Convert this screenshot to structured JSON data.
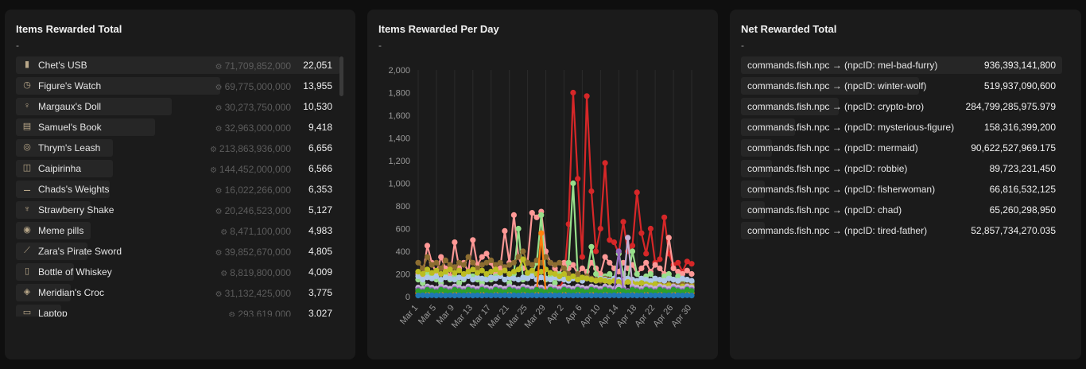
{
  "panels": {
    "items_total": {
      "title": "Items Rewarded Total",
      "subtitle": "-",
      "items": [
        {
          "name": "Chet's USB",
          "coins": "71,709,852,000",
          "count": "22,051",
          "icon": "usb-icon",
          "bar": 1.0
        },
        {
          "name": "Figure's Watch",
          "coins": "69,775,000,000",
          "count": "13,955",
          "icon": "watch-icon",
          "bar": 0.63
        },
        {
          "name": "Margaux's Doll",
          "coins": "30,273,750,000",
          "count": "10,530",
          "icon": "doll-icon",
          "bar": 0.48
        },
        {
          "name": "Samuel's Book",
          "coins": "32,963,000,000",
          "count": "9,418",
          "icon": "book-icon",
          "bar": 0.43
        },
        {
          "name": "Thrym's Leash",
          "coins": "213,863,936,000",
          "count": "6,656",
          "icon": "leash-icon",
          "bar": 0.3
        },
        {
          "name": "Caipirinha",
          "coins": "144,452,000,000",
          "count": "6,566",
          "icon": "drink-icon",
          "bar": 0.3
        },
        {
          "name": "Chads's Weights",
          "coins": "16,022,266,000",
          "count": "6,353",
          "icon": "weights-icon",
          "bar": 0.29
        },
        {
          "name": "Strawberry Shake",
          "coins": "20,246,523,000",
          "count": "5,127",
          "icon": "shake-icon",
          "bar": 0.23
        },
        {
          "name": "Meme pills",
          "coins": "8,471,100,000",
          "count": "4,983",
          "icon": "pills-icon",
          "bar": 0.23
        },
        {
          "name": "Zara's Pirate Sword",
          "coins": "39,852,670,000",
          "count": "4,805",
          "icon": "sword-icon",
          "bar": 0.22
        },
        {
          "name": "Bottle of Whiskey",
          "coins": "8,819,800,000",
          "count": "4,009",
          "icon": "bottle-icon",
          "bar": 0.18
        },
        {
          "name": "Meridian's Croc",
          "coins": "31,132,425,000",
          "count": "3,775",
          "icon": "croc-icon",
          "bar": 0.17
        },
        {
          "name": "Laptop",
          "coins": "293,619,000",
          "count": "3,027",
          "icon": "laptop-icon",
          "bar": 0.14
        }
      ]
    },
    "items_per_day": {
      "title": "Items Rewarded Per Day",
      "subtitle": "-"
    },
    "net_total": {
      "title": "Net Rewarded Total",
      "subtitle": "-",
      "items": [
        {
          "name": "commands.fish.npc → (npcID: mel-bad-furry)",
          "value": "936,393,141,800",
          "bar": 1.0
        },
        {
          "name": "commands.fish.npc → (npcID: winter-wolf)",
          "value": "519,937,090,600",
          "bar": 0.555
        },
        {
          "name": "commands.fish.npc → (npcID: crypto-bro)",
          "value": "284,799,285,975.979",
          "bar": 0.304
        },
        {
          "name": "commands.fish.npc → (npcID: mysterious-figure)",
          "value": "158,316,399,200",
          "bar": 0.169
        },
        {
          "name": "commands.fish.npc → (npcID: mermaid)",
          "value": "90,622,527,969.175",
          "bar": 0.097
        },
        {
          "name": "commands.fish.npc → (npcID: robbie)",
          "value": "89,723,231,450",
          "bar": 0.096
        },
        {
          "name": "commands.fish.npc → (npcID: fisherwoman)",
          "value": "66,816,532,125",
          "bar": 0.071
        },
        {
          "name": "commands.fish.npc → (npcID: chad)",
          "value": "65,260,298,950",
          "bar": 0.07
        },
        {
          "name": "commands.fish.npc → (npcID: tired-father)",
          "value": "52,857,734,270.035",
          "bar": 0.056
        }
      ]
    }
  },
  "chart_data": {
    "type": "line",
    "title": "Items Rewarded Per Day",
    "xlabel": "",
    "ylabel": "",
    "ylim": [
      0,
      2000
    ],
    "yticks": [
      "0",
      "200",
      "400",
      "600",
      "800",
      "1,000",
      "1,200",
      "1,400",
      "1,600",
      "1,800",
      "2,000"
    ],
    "x_tick_labels": [
      "Mar 1",
      "Mar 5",
      "Mar 9",
      "Mar 13",
      "Mar 17",
      "Mar 21",
      "Mar 25",
      "Mar 29",
      "Apr 2",
      "Apr 6",
      "Apr 10",
      "Apr 14",
      "Apr 18",
      "Apr 22",
      "Apr 26",
      "Apr 30"
    ],
    "grid": "vertical",
    "legend": "none",
    "x_count": 61,
    "series": [
      {
        "color": "#d62728",
        "values": [
          40,
          30,
          45,
          50,
          35,
          30,
          40,
          45,
          30,
          35,
          40,
          30,
          45,
          50,
          35,
          30,
          40,
          45,
          30,
          35,
          40,
          30,
          45,
          50,
          35,
          30,
          40,
          45,
          30,
          35,
          50,
          80,
          150,
          640,
          1800,
          1040,
          350,
          1770,
          930,
          400,
          600,
          1180,
          500,
          480,
          380,
          660,
          400,
          450,
          920,
          560,
          380,
          600,
          300,
          330,
          700,
          380,
          280,
          300,
          220,
          310,
          290
        ]
      },
      {
        "color": "#ff9896",
        "values": [
          200,
          180,
          450,
          300,
          200,
          350,
          250,
          180,
          480,
          250,
          300,
          220,
          500,
          280,
          350,
          380,
          300,
          200,
          250,
          580,
          300,
          720,
          350,
          250,
          300,
          740,
          700,
          750,
          400,
          300,
          250,
          200,
          300,
          250,
          280,
          200,
          250,
          220,
          300,
          250,
          200,
          350,
          300,
          250,
          220,
          300,
          250,
          280,
          200,
          250,
          300,
          220,
          280,
          250,
          200,
          520,
          250,
          220,
          200,
          230,
          200
        ]
      },
      {
        "color": "#98df8a",
        "values": [
          150,
          120,
          200,
          180,
          150,
          120,
          200,
          150,
          180,
          120,
          150,
          200,
          180,
          150,
          120,
          200,
          150,
          180,
          200,
          150,
          120,
          200,
          600,
          150,
          180,
          200,
          300,
          720,
          150,
          180,
          120,
          200,
          150,
          300,
          1000,
          200,
          150,
          180,
          440,
          200,
          150,
          180,
          200,
          150,
          380,
          200,
          150,
          400,
          200,
          150,
          180,
          200,
          150,
          120,
          180,
          200,
          150,
          180,
          120,
          150,
          130
        ]
      },
      {
        "color": "#8c6d31",
        "values": [
          300,
          250,
          350,
          280,
          300,
          250,
          320,
          280,
          260,
          300,
          280,
          350,
          300,
          250,
          280,
          300,
          320,
          280,
          300,
          260,
          280,
          300,
          350,
          400,
          300,
          280,
          320,
          300,
          350,
          300,
          280,
          300,
          250,
          200,
          180,
          200,
          150,
          180,
          160,
          150,
          140,
          160,
          150,
          140,
          130,
          150,
          140,
          130,
          120,
          140,
          130,
          120,
          110,
          130,
          120,
          110,
          100,
          120,
          110,
          100,
          110
        ]
      },
      {
        "color": "#aec7e8",
        "values": [
          180,
          150,
          170,
          160,
          180,
          150,
          170,
          160,
          150,
          170,
          160,
          180,
          150,
          170,
          160,
          150,
          170,
          160,
          180,
          150,
          170,
          160,
          150,
          170,
          160,
          180,
          150,
          170,
          160,
          150,
          170,
          160,
          150,
          140,
          160,
          150,
          140,
          160,
          150,
          140,
          160,
          150,
          140,
          160,
          150,
          140,
          160,
          150,
          140,
          160,
          150,
          140,
          160,
          150,
          140,
          160,
          150,
          140,
          160,
          150,
          140
        ]
      },
      {
        "color": "#bcbd22",
        "values": [
          220,
          200,
          240,
          210,
          230,
          200,
          220,
          240,
          210,
          230,
          200,
          220,
          240,
          210,
          230,
          200,
          220,
          240,
          210,
          230,
          200,
          220,
          240,
          330,
          210,
          230,
          200,
          220,
          240,
          210,
          200,
          180,
          200,
          160,
          180,
          150,
          170,
          160,
          150,
          140,
          150,
          140,
          130,
          140,
          130,
          120,
          130,
          120,
          110,
          120,
          110,
          100,
          110,
          100,
          90,
          100,
          90,
          80,
          90,
          80,
          90
        ]
      },
      {
        "color": "#c5b0d5",
        "values": [
          80,
          70,
          90,
          80,
          70,
          90,
          80,
          70,
          90,
          80,
          70,
          90,
          80,
          70,
          90,
          80,
          70,
          90,
          80,
          70,
          90,
          80,
          70,
          90,
          80,
          70,
          90,
          80,
          70,
          90,
          80,
          70,
          90,
          80,
          70,
          90,
          80,
          70,
          90,
          80,
          70,
          90,
          80,
          70,
          90,
          80,
          520,
          90,
          80,
          70,
          90,
          80,
          70,
          90,
          80,
          70,
          90,
          80,
          70,
          90,
          80
        ]
      },
      {
        "color": "#9467bd",
        "values": [
          60,
          50,
          70,
          60,
          50,
          70,
          60,
          50,
          70,
          60,
          50,
          70,
          60,
          50,
          70,
          60,
          50,
          70,
          60,
          50,
          70,
          60,
          50,
          70,
          60,
          50,
          70,
          60,
          50,
          70,
          60,
          50,
          70,
          60,
          50,
          70,
          60,
          50,
          70,
          60,
          50,
          70,
          60,
          50,
          400,
          60,
          50,
          70,
          60,
          50,
          70,
          60,
          50,
          70,
          60,
          50,
          70,
          60,
          50,
          70,
          60
        ]
      },
      {
        "color": "#ff7f0e",
        "values": [
          30,
          25,
          35,
          30,
          25,
          35,
          30,
          25,
          35,
          30,
          25,
          35,
          30,
          25,
          35,
          30,
          25,
          35,
          30,
          25,
          35,
          30,
          25,
          35,
          30,
          25,
          35,
          560,
          25,
          35,
          30,
          25,
          35,
          30,
          25,
          35,
          30,
          25,
          35,
          30,
          25,
          35,
          30,
          25,
          35,
          30,
          25,
          35,
          30,
          25,
          35,
          30,
          25,
          35,
          30,
          25,
          35,
          30,
          25,
          35,
          30
        ]
      },
      {
        "color": "#2ca02c",
        "values": [
          50,
          40,
          60,
          50,
          40,
          60,
          50,
          40,
          60,
          50,
          40,
          60,
          50,
          40,
          60,
          50,
          40,
          60,
          50,
          40,
          60,
          50,
          40,
          60,
          50,
          40,
          60,
          50,
          40,
          60,
          50,
          40,
          60,
          50,
          40,
          60,
          50,
          40,
          60,
          50,
          40,
          60,
          50,
          40,
          60,
          50,
          40,
          60,
          50,
          40,
          60,
          50,
          40,
          60,
          50,
          40,
          60,
          50,
          40,
          60,
          50
        ]
      },
      {
        "color": "#1f77b4",
        "values": [
          10,
          12,
          10,
          12,
          10,
          12,
          10,
          12,
          10,
          12,
          10,
          12,
          10,
          12,
          10,
          12,
          10,
          12,
          10,
          12,
          10,
          12,
          10,
          12,
          10,
          12,
          10,
          12,
          10,
          12,
          10,
          12,
          10,
          12,
          10,
          12,
          10,
          12,
          10,
          12,
          10,
          12,
          10,
          12,
          10,
          12,
          10,
          12,
          10,
          12,
          10,
          12,
          10,
          12,
          10,
          12,
          10,
          12,
          10,
          12,
          10
        ]
      }
    ]
  }
}
